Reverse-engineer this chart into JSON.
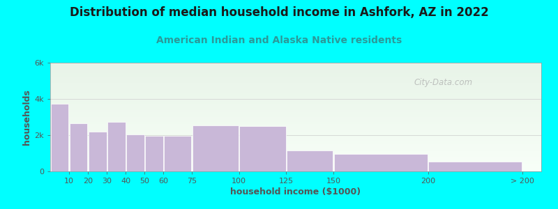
{
  "title": "Distribution of median household income in Ashfork, AZ in 2022",
  "subtitle": "American Indian and Alaska Native residents",
  "xlabel": "household income ($1000)",
  "ylabel": "households",
  "background_color": "#00ffff",
  "plot_bg_top": "#e8f4e8",
  "plot_bg_bottom": "#f8fff8",
  "bar_color": "#c9b8d8",
  "bar_edge_color": "#ffffff",
  "categories": [
    "10",
    "20",
    "30",
    "40",
    "50",
    "60",
    "75",
    "100",
    "125",
    "150",
    "200",
    "> 200"
  ],
  "bar_lefts": [
    0,
    10,
    20,
    30,
    40,
    50,
    60,
    75,
    100,
    125,
    150,
    200
  ],
  "bar_widths": [
    10,
    10,
    10,
    10,
    10,
    10,
    15,
    25,
    25,
    25,
    50,
    50
  ],
  "values": [
    3750,
    2650,
    2200,
    2750,
    2050,
    1950,
    1950,
    2550,
    2500,
    1150,
    950,
    550
  ],
  "ylim": [
    0,
    6000
  ],
  "yticks": [
    0,
    2000,
    4000,
    6000
  ],
  "ytick_labels": [
    "0",
    "2k",
    "4k",
    "6k"
  ],
  "xtick_positions": [
    10,
    20,
    30,
    40,
    50,
    60,
    75,
    100,
    125,
    150,
    200,
    250
  ],
  "xtick_labels": [
    "10",
    "20",
    "30",
    "40",
    "50",
    "60",
    "75",
    "100",
    "125",
    "150",
    "200",
    "> 200"
  ],
  "xlim": [
    0,
    260
  ],
  "title_fontsize": 12,
  "subtitle_fontsize": 10,
  "axis_label_fontsize": 9,
  "tick_fontsize": 8,
  "title_color": "#1a1a1a",
  "subtitle_color": "#2a9a9a",
  "axis_label_color": "#555555",
  "tick_color": "#555555",
  "watermark": "City-Data.com"
}
